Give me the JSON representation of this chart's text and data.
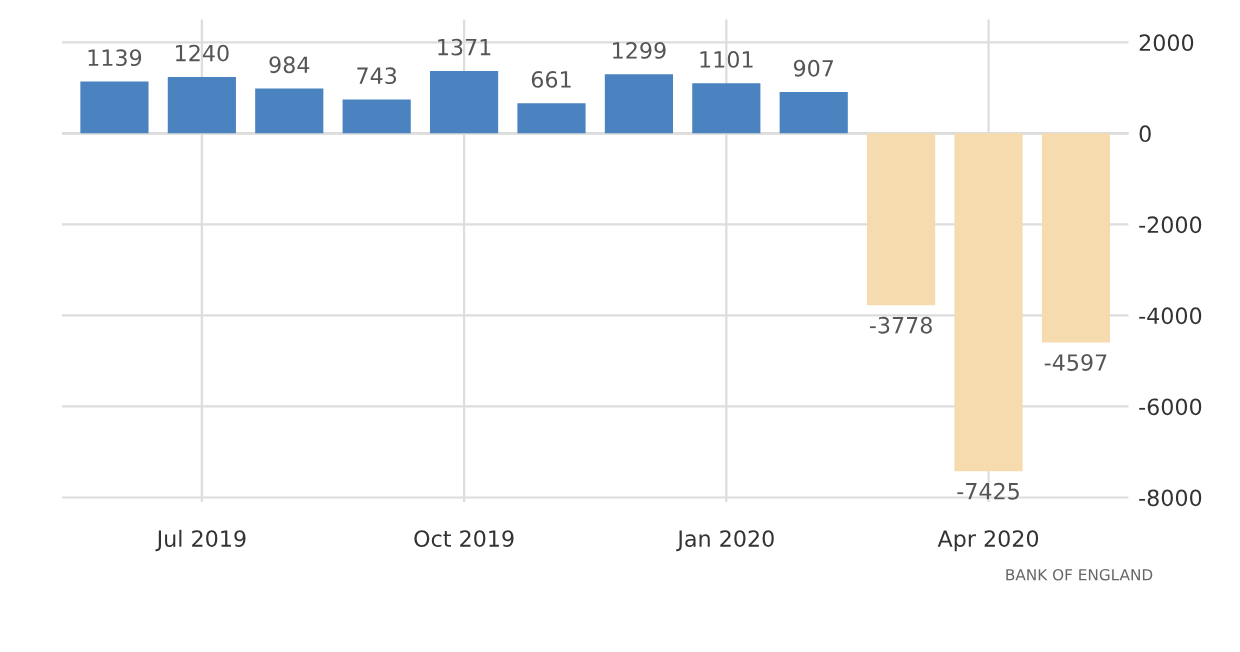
{
  "chart_data": {
    "type": "bar",
    "categories": [
      null,
      "Jul 2019",
      null,
      null,
      "Oct 2019",
      null,
      null,
      "Jan 2020",
      null,
      null,
      "Apr 2020",
      null
    ],
    "values": [
      1139,
      1240,
      984,
      743,
      1371,
      661,
      1299,
      1101,
      907,
      -3778,
      -7425,
      -4597
    ],
    "colors": [
      "#4a83c0",
      "#4a83c0",
      "#4a83c0",
      "#4a83c0",
      "#4a83c0",
      "#4a83c0",
      "#4a83c0",
      "#4a83c0",
      "#4a83c0",
      "#f5dbad",
      "#f5dbad",
      "#f5dbad"
    ],
    "ylim": [
      -8100,
      2500
    ],
    "yticks": [
      -8000,
      -6000,
      -4000,
      -2000,
      0,
      2000
    ],
    "data_labels": true,
    "grid": true,
    "annotations": [
      "BANK OF ENGLAND"
    ]
  }
}
